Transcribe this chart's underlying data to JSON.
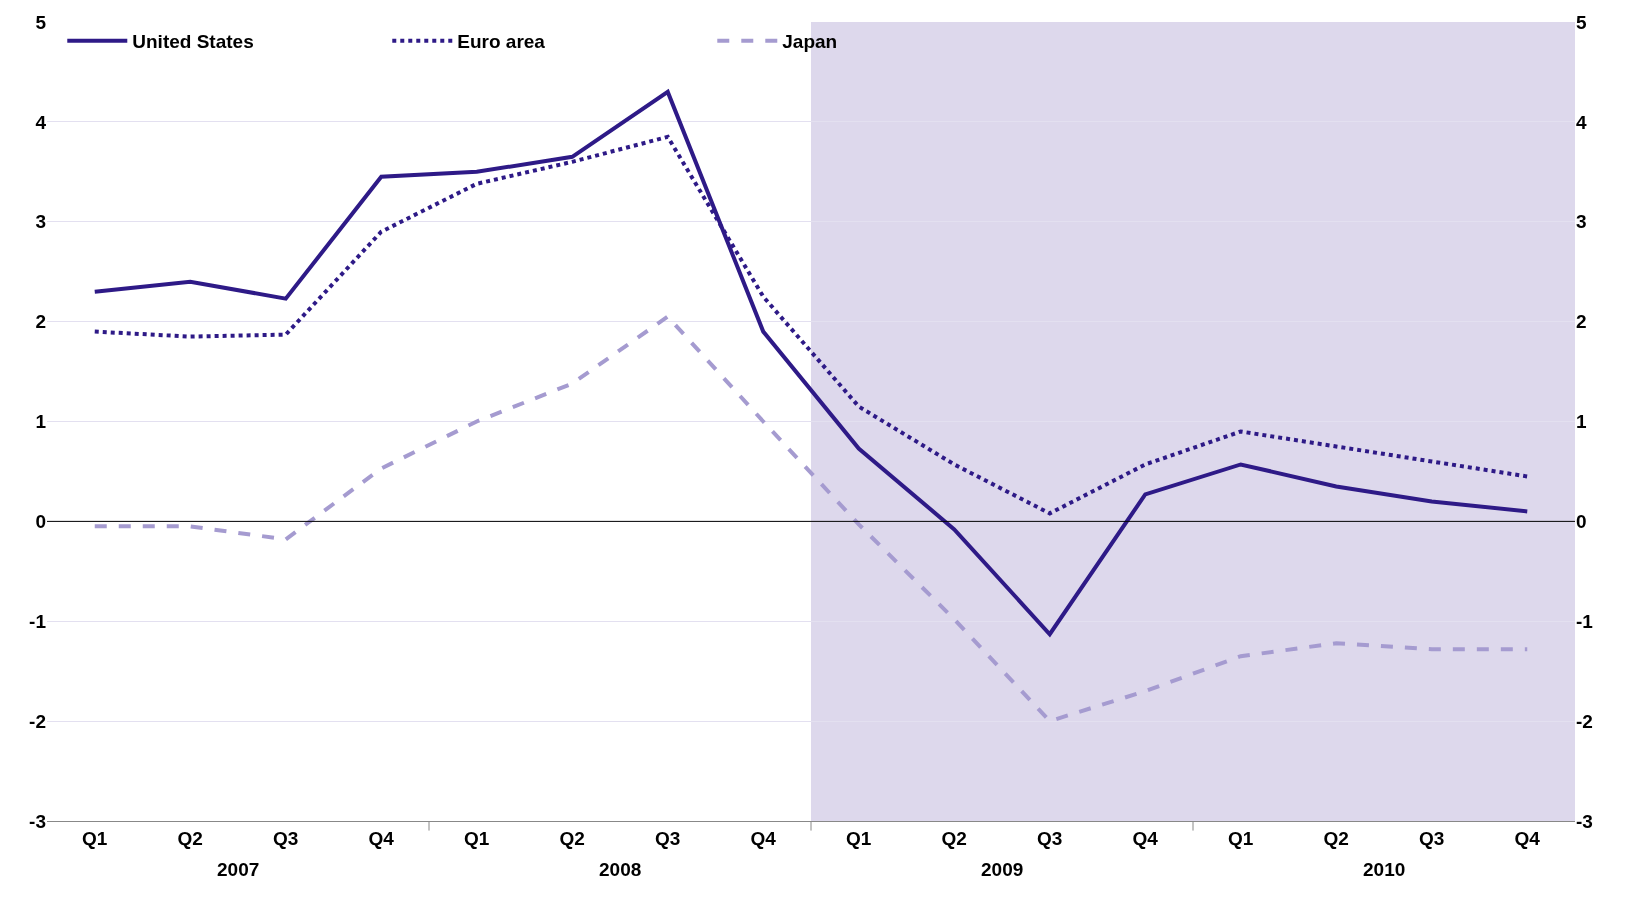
{
  "chart_data": {
    "type": "line",
    "categories": [
      "Q1",
      "Q2",
      "Q3",
      "Q4",
      "Q1",
      "Q2",
      "Q3",
      "Q4",
      "Q1",
      "Q2",
      "Q3",
      "Q4",
      "Q1",
      "Q2",
      "Q3",
      "Q4"
    ],
    "series": [
      {
        "name": "United States",
        "color": "#2e1a87",
        "line_style": "solid",
        "values": [
          2.3,
          2.4,
          2.23,
          3.45,
          3.5,
          3.65,
          4.3,
          1.9,
          0.73,
          -0.08,
          -1.13,
          0.27,
          0.57,
          0.35,
          0.2,
          0.1
        ]
      },
      {
        "name": "Euro area",
        "color": "#2e1a87",
        "line_style": "dotted",
        "values": [
          1.9,
          1.85,
          1.87,
          2.9,
          3.38,
          3.6,
          3.85,
          2.25,
          1.15,
          0.57,
          0.08,
          0.57,
          0.9,
          0.75,
          0.6,
          0.45
        ]
      },
      {
        "name": "Japan",
        "color": "#a59bd0",
        "line_style": "dashed",
        "values": [
          -0.05,
          -0.05,
          -0.18,
          0.53,
          1.0,
          1.38,
          2.05,
          1.0,
          -0.03,
          -0.98,
          -2.0,
          -1.7,
          -1.35,
          -1.22,
          -1.28,
          -1.28
        ]
      }
    ],
    "annotations": [
      "2007",
      "2008",
      "2009",
      "2010"
    ],
    "ylim": [
      -3,
      5
    ],
    "yticks": [
      -3,
      -2,
      -1,
      0,
      1,
      2,
      3,
      4,
      5
    ],
    "y2lim": [
      -3,
      5
    ],
    "y2ticks": [
      -3,
      -2,
      -1,
      0,
      1,
      2,
      3,
      4,
      5
    ],
    "ref_lines": [
      {
        "axis": "y",
        "value": 0,
        "color": "#000000"
      }
    ],
    "grid": "y",
    "legend": "top left",
    "marker": "none"
  }
}
